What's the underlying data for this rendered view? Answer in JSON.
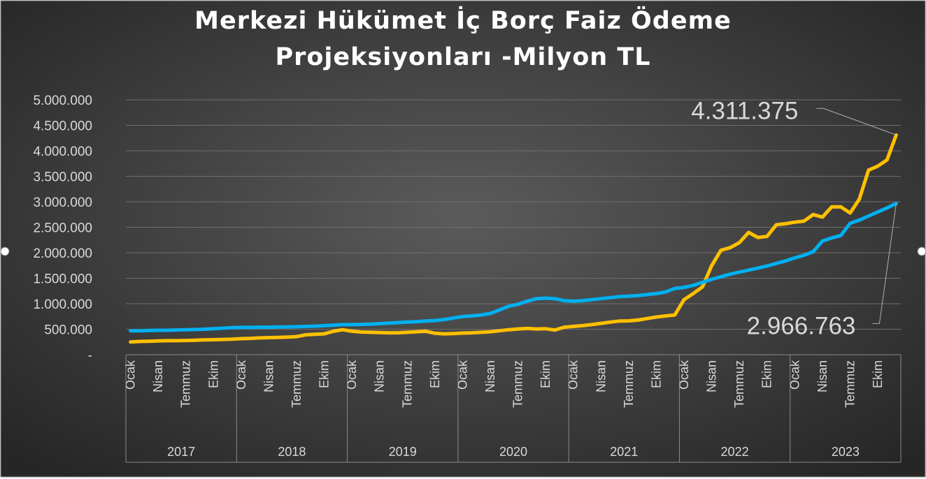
{
  "chart_data": {
    "type": "line",
    "title": "Merkezi Hükümet İç Borç Faiz Ödeme Projeksiyonları -Milyon TL",
    "categories": [
      "Ocak",
      null,
      null,
      "Nisan",
      null,
      null,
      "Temmuz",
      null,
      null,
      "Ekim",
      null,
      null,
      "Ocak",
      null,
      null,
      "Nisan",
      null,
      null,
      "Temmuz",
      null,
      null,
      "Ekim",
      null,
      null,
      "Ocak",
      null,
      null,
      "Nisan",
      null,
      null,
      "Temmuz",
      null,
      null,
      "Ekim",
      null,
      null,
      "Ocak",
      null,
      null,
      "Nisan",
      null,
      null,
      "Temmuz",
      null,
      null,
      "Ekim",
      null,
      null,
      "Ocak",
      null,
      null,
      "Nisan",
      null,
      null,
      "Temmuz",
      null,
      null,
      "Ekim",
      null,
      null,
      "Ocak",
      null,
      null,
      "Nisan",
      null,
      null,
      "Temmuz",
      null,
      null,
      "Ekim",
      null,
      null,
      "Ocak",
      null,
      null,
      "Nisan",
      null,
      null,
      "Temmuz",
      null,
      null,
      "Ekim",
      null,
      null
    ],
    "x_groups": [
      "2017",
      "2018",
      "2019",
      "2020",
      "2021",
      "2022",
      "2023"
    ],
    "series": [
      {
        "color": "#ffc000",
        "values": [
          250000,
          260000,
          265000,
          270000,
          275000,
          275000,
          280000,
          285000,
          290000,
          295000,
          300000,
          305000,
          315000,
          320000,
          330000,
          335000,
          340000,
          345000,
          355000,
          390000,
          400000,
          410000,
          460000,
          490000,
          460000,
          445000,
          440000,
          435000,
          430000,
          430000,
          440000,
          450000,
          460000,
          420000,
          410000,
          415000,
          425000,
          430000,
          440000,
          450000,
          470000,
          490000,
          505000,
          515000,
          505000,
          510000,
          485000,
          540000,
          555000,
          570000,
          590000,
          615000,
          640000,
          660000,
          665000,
          680000,
          710000,
          740000,
          760000,
          780000,
          1080000,
          1200000,
          1330000,
          1750000,
          2050000,
          2100000,
          2200000,
          2400000,
          2300000,
          2320000,
          2550000,
          2570000,
          2600000,
          2620000,
          2750000,
          2700000,
          2900000,
          2900000,
          2780000,
          3050000,
          3620000,
          3700000,
          3820000,
          4311375
        ],
        "value_labels": [
          null,
          null,
          null,
          null,
          null,
          null,
          null,
          null,
          null,
          null,
          null,
          null,
          null,
          null,
          null,
          null,
          null,
          null,
          null,
          null,
          null,
          null,
          null,
          null,
          null,
          null,
          null,
          null,
          null,
          null,
          null,
          null,
          null,
          null,
          null,
          null,
          null,
          null,
          null,
          null,
          null,
          null,
          null,
          null,
          null,
          null,
          null,
          null,
          null,
          null,
          null,
          null,
          null,
          null,
          null,
          null,
          null,
          null,
          null,
          null,
          null,
          null,
          null,
          null,
          null,
          null,
          null,
          null,
          null,
          null,
          null,
          null,
          null,
          null,
          null,
          null,
          null,
          null,
          null,
          null,
          null,
          null,
          null,
          "4.311.375"
        ]
      },
      {
        "color": "#00b0f0",
        "values": [
          470000,
          470000,
          475000,
          480000,
          480000,
          485000,
          490000,
          495000,
          500000,
          510000,
          520000,
          530000,
          535000,
          535000,
          540000,
          540000,
          545000,
          545000,
          550000,
          555000,
          560000,
          570000,
          580000,
          590000,
          590000,
          595000,
          600000,
          610000,
          620000,
          630000,
          640000,
          650000,
          660000,
          670000,
          690000,
          720000,
          750000,
          760000,
          780000,
          810000,
          880000,
          950000,
          990000,
          1050000,
          1100000,
          1110000,
          1100000,
          1060000,
          1050000,
          1060000,
          1080000,
          1100000,
          1120000,
          1140000,
          1150000,
          1160000,
          1180000,
          1200000,
          1230000,
          1300000,
          1320000,
          1360000,
          1420000,
          1480000,
          1530000,
          1580000,
          1620000,
          1660000,
          1700000,
          1740000,
          1790000,
          1840000,
          1900000,
          1950000,
          2020000,
          2230000,
          2290000,
          2340000,
          2580000,
          2640000,
          2720000,
          2800000,
          2880000,
          2966763
        ],
        "value_labels": [
          null,
          null,
          null,
          null,
          null,
          null,
          null,
          null,
          null,
          null,
          null,
          null,
          null,
          null,
          null,
          null,
          null,
          null,
          null,
          null,
          null,
          null,
          null,
          null,
          null,
          null,
          null,
          null,
          null,
          null,
          null,
          null,
          null,
          null,
          null,
          null,
          null,
          null,
          null,
          null,
          null,
          null,
          null,
          null,
          null,
          null,
          null,
          null,
          null,
          null,
          null,
          null,
          null,
          null,
          null,
          null,
          null,
          null,
          null,
          null,
          null,
          null,
          null,
          null,
          null,
          null,
          null,
          null,
          null,
          null,
          null,
          null,
          null,
          null,
          null,
          null,
          null,
          null,
          null,
          null,
          null,
          null,
          null,
          "2.966.763"
        ]
      }
    ],
    "ylim": [
      0,
      5000000
    ],
    "yticks": [
      {
        "value": 0,
        "label": "-"
      },
      {
        "value": 500000,
        "label": "500.000"
      },
      {
        "value": 1000000,
        "label": "1.000.000"
      },
      {
        "value": 1500000,
        "label": "1.500.000"
      },
      {
        "value": 2000000,
        "label": "2.000.000"
      },
      {
        "value": 2500000,
        "label": "2.500.000"
      },
      {
        "value": 3000000,
        "label": "3.000.000"
      },
      {
        "value": 3500000,
        "label": "3.500.000"
      },
      {
        "value": 4000000,
        "label": "4.000.000"
      },
      {
        "value": 4500000,
        "label": "4.500.000"
      },
      {
        "value": 5000000,
        "label": "5.000.000"
      }
    ],
    "grid": true
  }
}
